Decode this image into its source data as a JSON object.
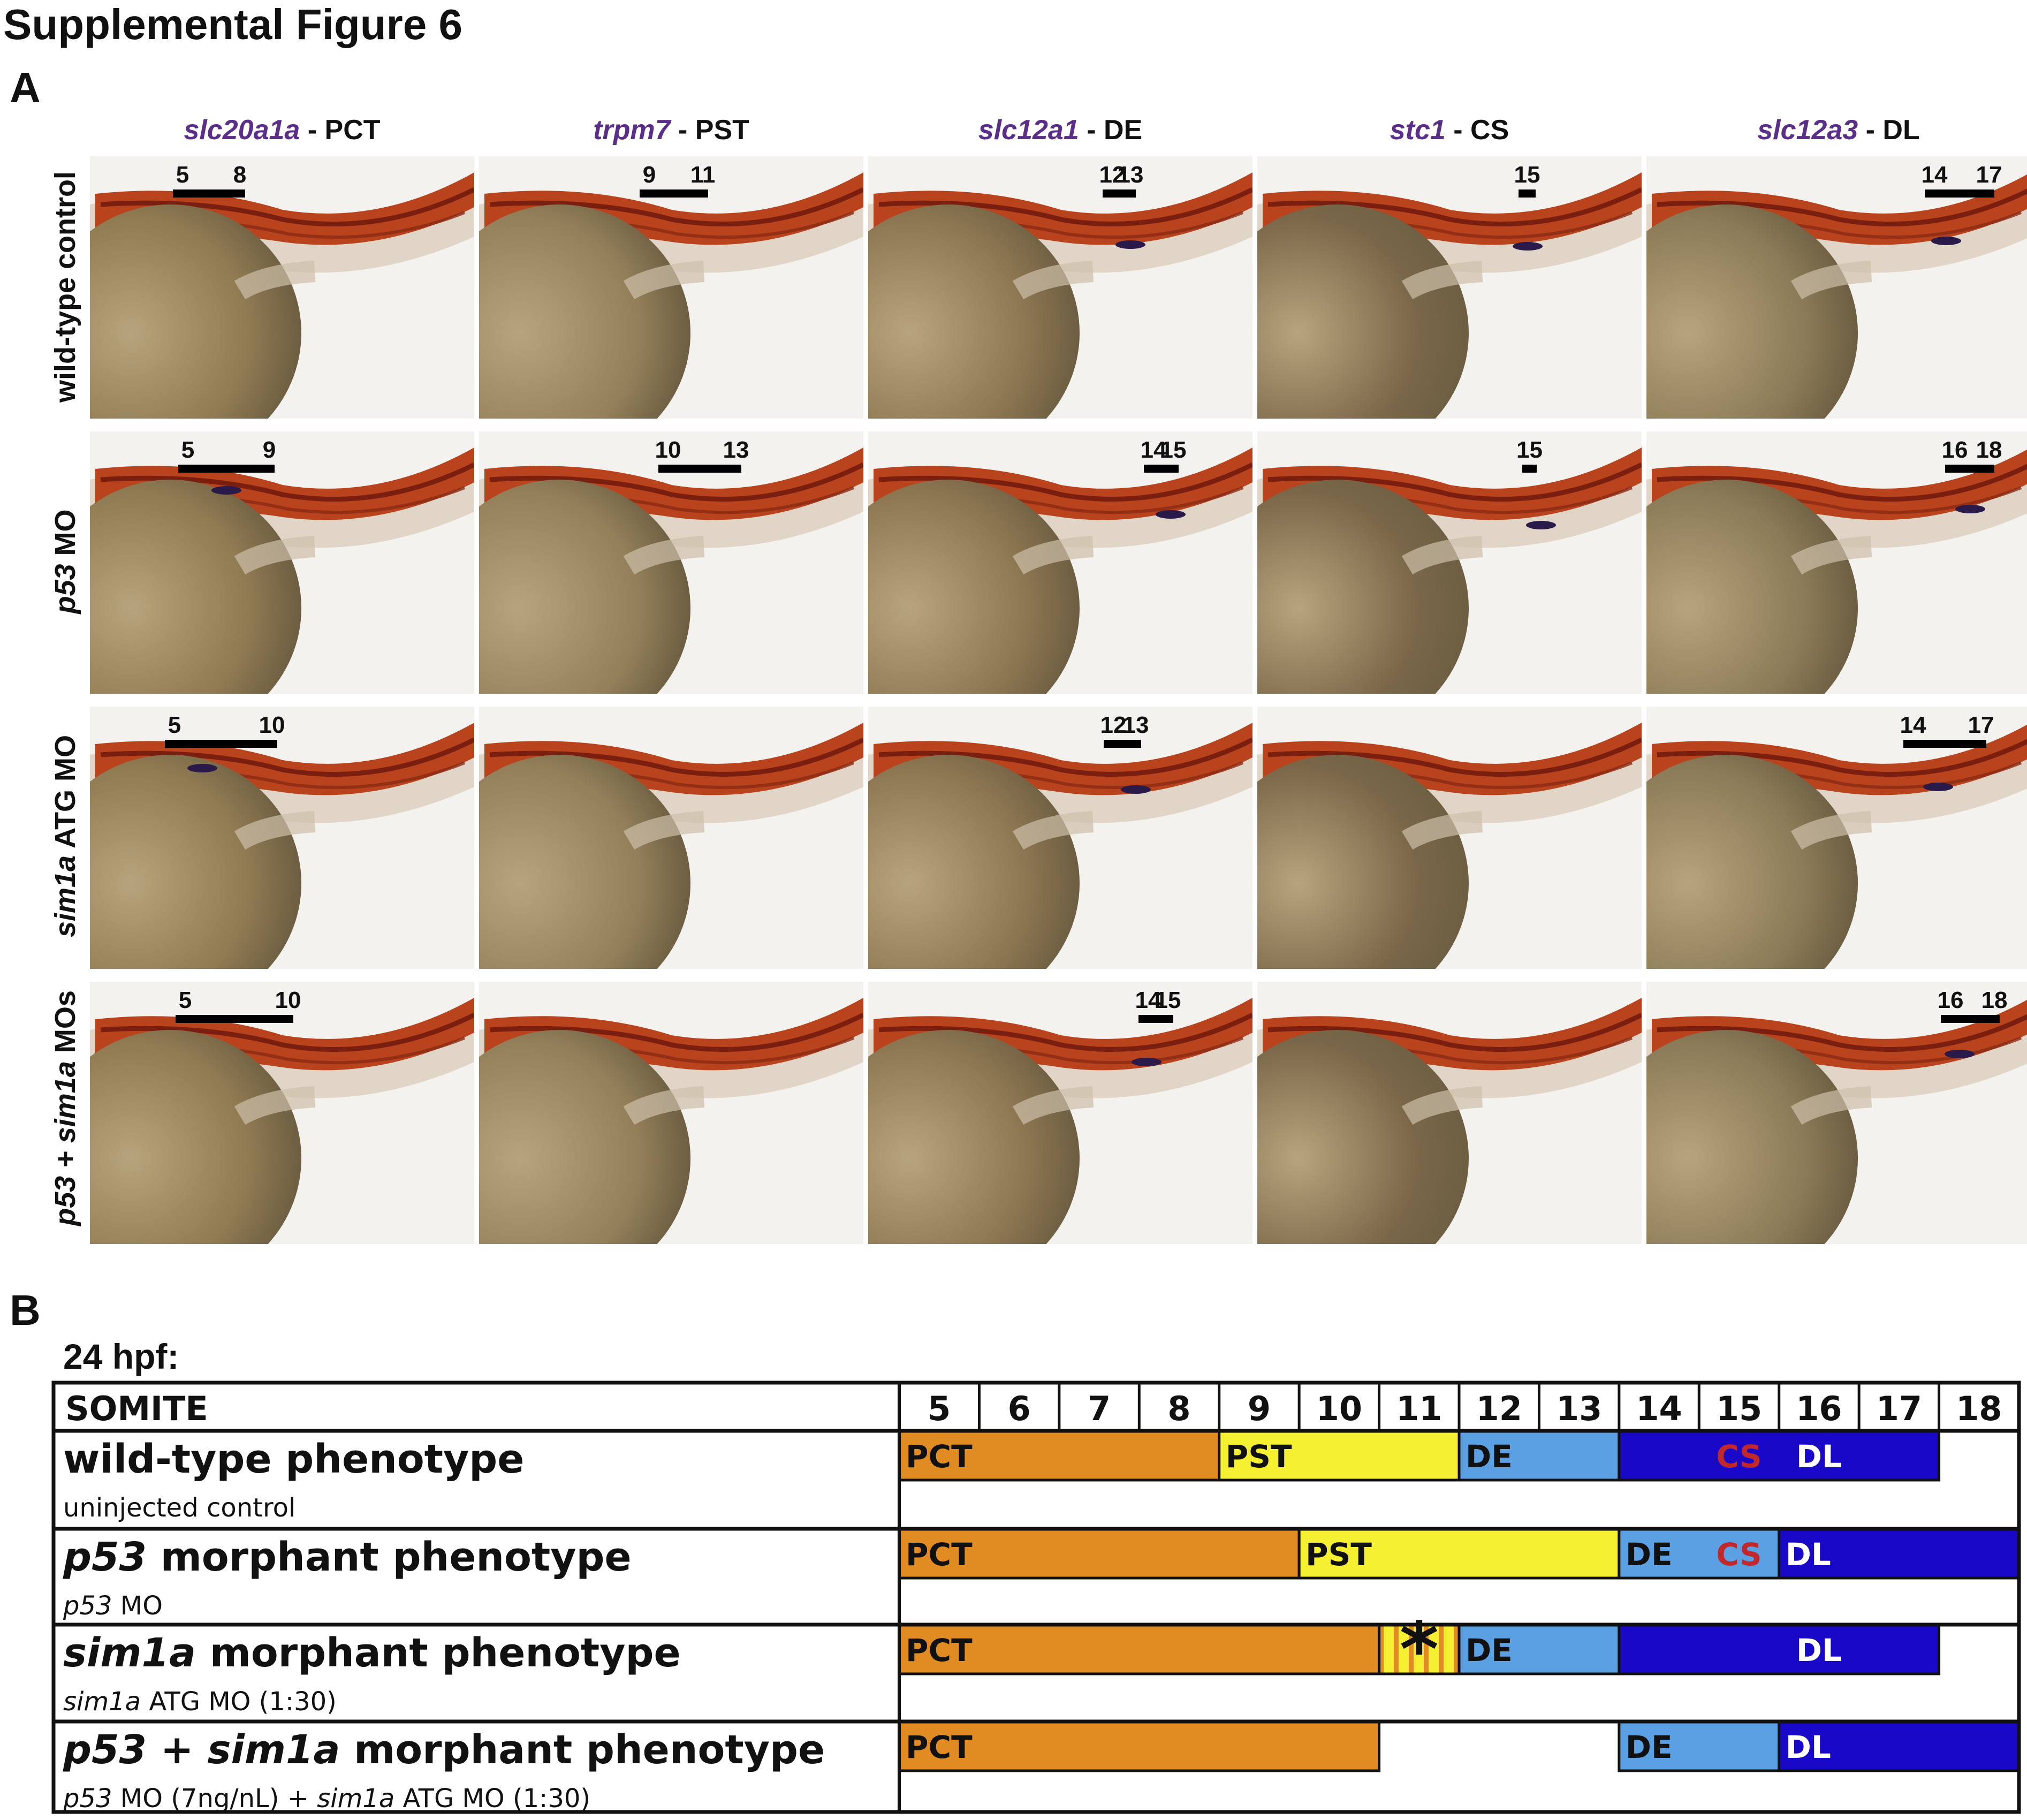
{
  "figure_title": "Supplemental Figure 6",
  "panel_a": {
    "letter": "A",
    "columns": [
      {
        "gene": "slc20a1a",
        "segment": " - PCT"
      },
      {
        "gene": "trpm7",
        "segment": " - PST"
      },
      {
        "gene": "slc12a1",
        "segment": " - DE"
      },
      {
        "gene": "stc1",
        "segment": " - CS"
      },
      {
        "gene": "slc12a3",
        "segment": " - DL"
      }
    ],
    "rows": [
      {
        "italic": "",
        "plain": "wild-type control"
      },
      {
        "italic": "p53",
        "plain": " MO"
      },
      {
        "italic": "sim1a",
        "plain": " ATG MO"
      },
      {
        "italic": "p53 + sim1a",
        "plain": " MOs"
      }
    ],
    "markers": [
      [
        {
          "from": "5",
          "to": "8"
        },
        {
          "from": "9",
          "to": "11"
        },
        {
          "from": "12",
          "to": "13"
        },
        {
          "from": "15",
          "to": ""
        },
        {
          "from": "14",
          "to": "17"
        }
      ],
      [
        {
          "from": "5",
          "to": "9"
        },
        {
          "from": "10",
          "to": "13"
        },
        {
          "from": "14",
          "to": "15"
        },
        {
          "from": "15",
          "to": ""
        },
        {
          "from": "16",
          "to": "18"
        }
      ],
      [
        {
          "from": "5",
          "to": "10"
        },
        null,
        {
          "from": "12",
          "to": "13"
        },
        null,
        {
          "from": "14",
          "to": "17"
        }
      ],
      [
        {
          "from": "5",
          "to": "10"
        },
        null,
        {
          "from": "14",
          "to": "15"
        },
        null,
        {
          "from": "16",
          "to": "18"
        }
      ]
    ]
  },
  "panel_b": {
    "letter": "B",
    "stage": "24 hpf:",
    "somite_header": "SOMITE",
    "somites": [
      "5",
      "6",
      "7",
      "8",
      "9",
      "10",
      "11",
      "12",
      "13",
      "14",
      "15",
      "16",
      "17",
      "18"
    ],
    "colors": {
      "PCT": "#e08c22",
      "PST": "#f5f032",
      "DE": "#5aa0e3",
      "DL": "#1a08c8",
      "CS": "#c0282c"
    },
    "rows": [
      {
        "title_italic": "",
        "title_plain": "wild-type phenotype",
        "subtitle_italic": "",
        "subtitle_plain": "uninjected control",
        "segments": [
          {
            "label": "PCT",
            "start": 5,
            "end": 8
          },
          {
            "label": "PST",
            "start": 9,
            "end": 11
          },
          {
            "label": "DE",
            "start": 12,
            "end": 13
          },
          {
            "label": "DL",
            "start": 14,
            "end": 17
          }
        ],
        "cs_label": "CS",
        "cs_somite": 15,
        "dl_label": "DL",
        "dl_somite": 16
      },
      {
        "title_italic": "p53",
        "title_plain": " morphant phenotype",
        "subtitle_italic": "p53",
        "subtitle_plain": " MO",
        "segments": [
          {
            "label": "PCT",
            "start": 5,
            "end": 9
          },
          {
            "label": "PST",
            "start": 10,
            "end": 13
          },
          {
            "label": "DE",
            "start": 14,
            "end": 15
          },
          {
            "label": "DL",
            "start": 16,
            "end": 18
          }
        ],
        "cs_label": "CS",
        "cs_somite": 15
      },
      {
        "title_italic": "sim1a",
        "title_plain": " morphant phenotype",
        "subtitle_italic": "sim1a",
        "subtitle_plain": " ATG MO (1:30)",
        "segments": [
          {
            "label": "PCT",
            "start": 5,
            "end": 10
          },
          {
            "label": "",
            "start": 11,
            "end": 11,
            "striped": true,
            "symbol": "*"
          },
          {
            "label": "DE",
            "start": 12,
            "end": 13
          },
          {
            "label": "DL",
            "start": 14,
            "end": 17
          }
        ],
        "dl_label": "DL",
        "dl_somite": 16
      },
      {
        "title_italic": "p53 + sim1a",
        "title_plain": " morphant phenotype",
        "subtitle_italic": "p53",
        "subtitle_plain": " MO (7ng/nL) + ",
        "subtitle_italic2": "sim1a",
        "subtitle_plain2": " ATG MO (1:30)",
        "segments": [
          {
            "label": "PCT",
            "start": 5,
            "end": 10
          },
          {
            "label": "DE",
            "start": 14,
            "end": 15
          },
          {
            "label": "DL",
            "start": 16,
            "end": 18
          }
        ]
      }
    ]
  }
}
